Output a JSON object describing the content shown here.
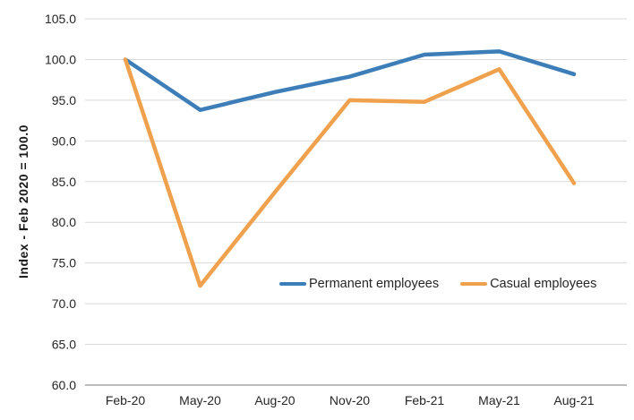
{
  "chart_data": {
    "type": "line",
    "title": "",
    "xlabel": "",
    "ylabel": "Index - Feb 2020 = 100.0",
    "categories": [
      "Feb-20",
      "May-20",
      "Aug-20",
      "Nov-20",
      "Feb-21",
      "May-21",
      "Aug-21"
    ],
    "series": [
      {
        "name": "Permanent employees",
        "color": "#3d7eb9",
        "values": [
          100.0,
          93.8,
          96.0,
          97.9,
          100.6,
          101.0,
          98.2
        ]
      },
      {
        "name": "Casual employees",
        "color": "#f0a14d",
        "values": [
          100.0,
          72.2,
          83.7,
          95.0,
          94.8,
          98.8,
          84.8
        ]
      }
    ],
    "ylim": [
      60.0,
      105.0
    ],
    "ytick_step": 5.0,
    "ytick_decimals": 1,
    "grid": "horizontal",
    "legend_position": "inside-bottom",
    "colors": {
      "gridline": "#d9d9d9",
      "axis_line": "#a6a6a6",
      "tick_text": "#262626",
      "background": "#ffffff"
    }
  }
}
